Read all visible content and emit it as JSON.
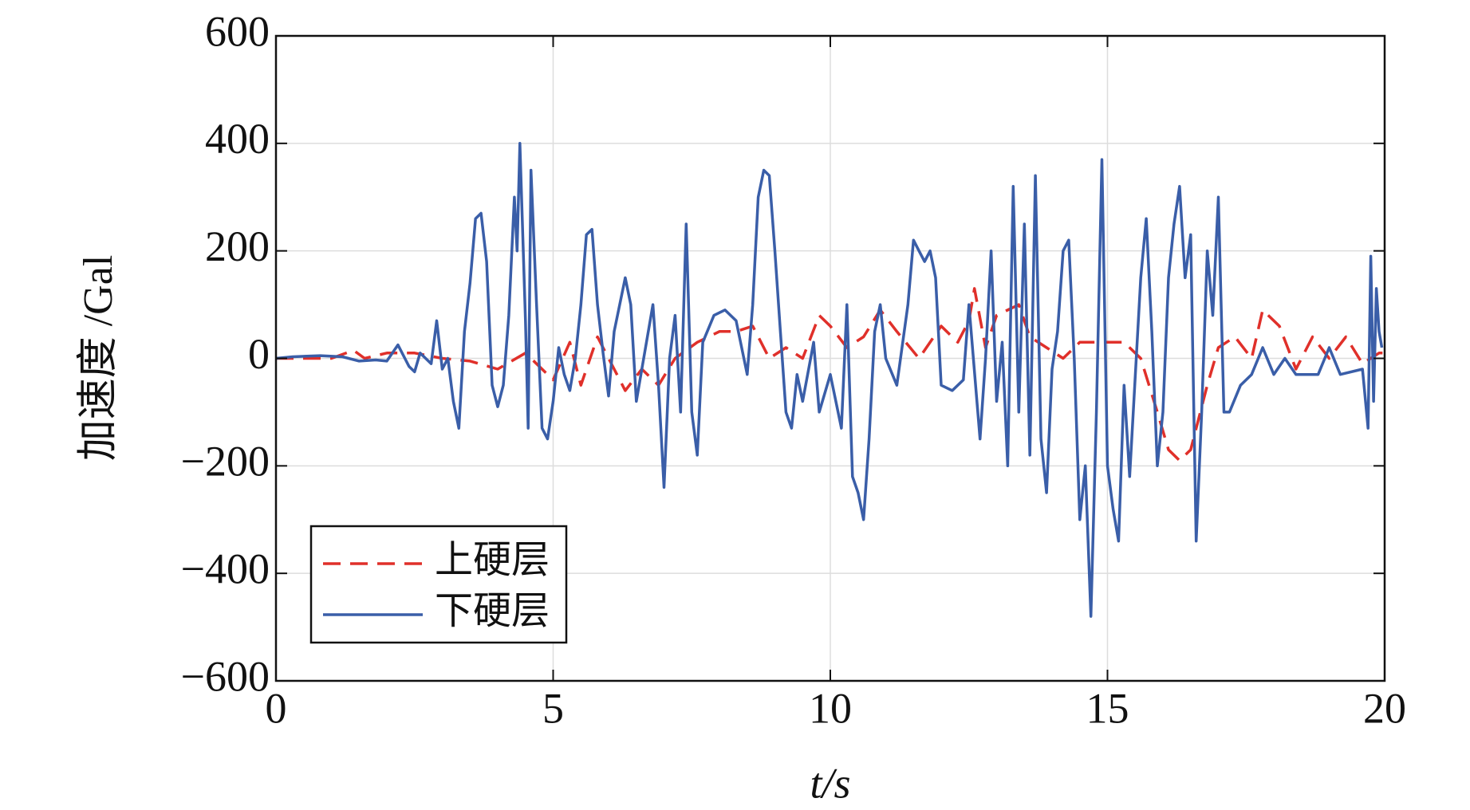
{
  "chart_data": {
    "type": "line",
    "xlabel": "t/s",
    "ylabel": "加速度 /Gal",
    "xlim": [
      0,
      20
    ],
    "xticks": [
      0,
      5,
      10,
      15,
      20
    ],
    "ylim": [
      -600,
      600
    ],
    "yticks": [
      {
        "value": -600,
        "label": "−600"
      },
      {
        "value": -400,
        "label": "−400"
      },
      {
        "value": -200,
        "label": "−200"
      },
      0,
      200,
      400,
      600
    ],
    "grid": true,
    "legend": "lower left",
    "series": [
      {
        "name": "上硬层",
        "color": "#e0302a",
        "dash": true,
        "x": [
          0,
          1,
          1.4,
          1.6,
          2,
          2.5,
          3,
          3.5,
          4,
          4.5,
          5,
          5.3,
          5.5,
          5.8,
          6,
          6.3,
          6.6,
          6.9,
          7.2,
          7.6,
          8.0,
          8.3,
          8.6,
          8.9,
          9.2,
          9.5,
          9.8,
          10.0,
          10.3,
          10.6,
          10.9,
          11.2,
          11.6,
          12.0,
          12.3,
          12.5,
          12.6,
          12.8,
          13.0,
          13.4,
          13.6,
          13.9,
          14.2,
          14.5,
          15.0,
          15.3,
          15.6,
          15.9,
          16.1,
          16.3,
          16.5,
          16.8,
          17.0,
          17.3,
          17.6,
          17.8,
          18.1,
          18.4,
          18.7,
          19.0,
          19.3,
          19.6,
          19.9,
          20
        ],
        "values": [
          0,
          0,
          15,
          0,
          10,
          10,
          0,
          -5,
          -20,
          10,
          -40,
          30,
          -50,
          40,
          0,
          -60,
          -20,
          -50,
          0,
          30,
          50,
          50,
          60,
          0,
          20,
          0,
          80,
          60,
          20,
          40,
          90,
          50,
          0,
          60,
          30,
          70,
          130,
          20,
          80,
          100,
          40,
          20,
          0,
          30,
          30,
          30,
          0,
          -100,
          -170,
          -190,
          -170,
          -50,
          20,
          40,
          0,
          90,
          60,
          -20,
          40,
          0,
          40,
          -10,
          10,
          10
        ]
      },
      {
        "name": "下硬层",
        "color": "#3a5ea8",
        "dash": false,
        "x": [
          0,
          0.3,
          0.8,
          1.2,
          1.5,
          1.8,
          2.0,
          2.2,
          2.4,
          2.5,
          2.6,
          2.8,
          2.9,
          3.0,
          3.1,
          3.2,
          3.3,
          3.4,
          3.5,
          3.6,
          3.7,
          3.8,
          3.9,
          4.0,
          4.1,
          4.2,
          4.3,
          4.35,
          4.4,
          4.5,
          4.55,
          4.6,
          4.7,
          4.8,
          4.9,
          5.0,
          5.1,
          5.2,
          5.3,
          5.4,
          5.5,
          5.6,
          5.7,
          5.8,
          5.9,
          6.0,
          6.1,
          6.3,
          6.4,
          6.5,
          6.6,
          6.8,
          6.9,
          7.0,
          7.1,
          7.2,
          7.3,
          7.4,
          7.5,
          7.6,
          7.7,
          7.9,
          8.1,
          8.3,
          8.5,
          8.6,
          8.7,
          8.8,
          8.9,
          9.0,
          9.1,
          9.2,
          9.3,
          9.4,
          9.5,
          9.7,
          9.8,
          10.0,
          10.2,
          10.3,
          10.4,
          10.5,
          10.6,
          10.7,
          10.8,
          10.9,
          11.0,
          11.2,
          11.4,
          11.5,
          11.6,
          11.7,
          11.8,
          11.9,
          12.0,
          12.2,
          12.4,
          12.5,
          12.7,
          12.8,
          12.9,
          13.0,
          13.1,
          13.2,
          13.3,
          13.4,
          13.5,
          13.6,
          13.7,
          13.8,
          13.9,
          14.0,
          14.1,
          14.2,
          14.3,
          14.4,
          14.5,
          14.6,
          14.7,
          14.8,
          14.9,
          15.0,
          15.1,
          15.2,
          15.3,
          15.4,
          15.6,
          15.7,
          15.8,
          15.9,
          16.0,
          16.1,
          16.2,
          16.3,
          16.4,
          16.5,
          16.6,
          16.7,
          16.8,
          16.9,
          17.0,
          17.1,
          17.2,
          17.4,
          17.6,
          17.8,
          18.0,
          18.2,
          18.4,
          18.8,
          19.0,
          19.2,
          19.6,
          19.7,
          19.75,
          19.8,
          19.85,
          19.9,
          19.95
        ],
        "values": [
          0,
          3,
          5,
          3,
          -5,
          -3,
          -5,
          25,
          -15,
          -25,
          10,
          -10,
          70,
          -20,
          0,
          -80,
          -130,
          50,
          140,
          260,
          270,
          180,
          -50,
          -90,
          -50,
          80,
          300,
          200,
          400,
          70,
          -130,
          350,
          100,
          -130,
          -150,
          -80,
          20,
          -30,
          -60,
          0,
          100,
          230,
          240,
          100,
          10,
          -70,
          50,
          150,
          100,
          -80,
          -20,
          100,
          -50,
          -240,
          0,
          80,
          -100,
          250,
          -100,
          -180,
          30,
          80,
          90,
          70,
          -30,
          100,
          300,
          350,
          340,
          200,
          50,
          -100,
          -130,
          -30,
          -80,
          30,
          -100,
          -30,
          -130,
          100,
          -220,
          -250,
          -300,
          -150,
          50,
          100,
          0,
          -50,
          100,
          220,
          200,
          180,
          200,
          150,
          -50,
          -60,
          -40,
          100,
          -150,
          0,
          200,
          -80,
          30,
          -200,
          320,
          -100,
          250,
          -180,
          340,
          -150,
          -250,
          -20,
          50,
          200,
          220,
          0,
          -300,
          -200,
          -480,
          -100,
          370,
          -200,
          -280,
          -340,
          -50,
          -220,
          150,
          260,
          50,
          -200,
          -100,
          150,
          250,
          320,
          150,
          230,
          -340,
          -100,
          200,
          80,
          300,
          -100,
          -100,
          -50,
          -30,
          20,
          -30,
          0,
          -30,
          -30,
          20,
          -30,
          -20,
          -130,
          190,
          -80,
          130,
          50,
          20
        ]
      }
    ]
  }
}
